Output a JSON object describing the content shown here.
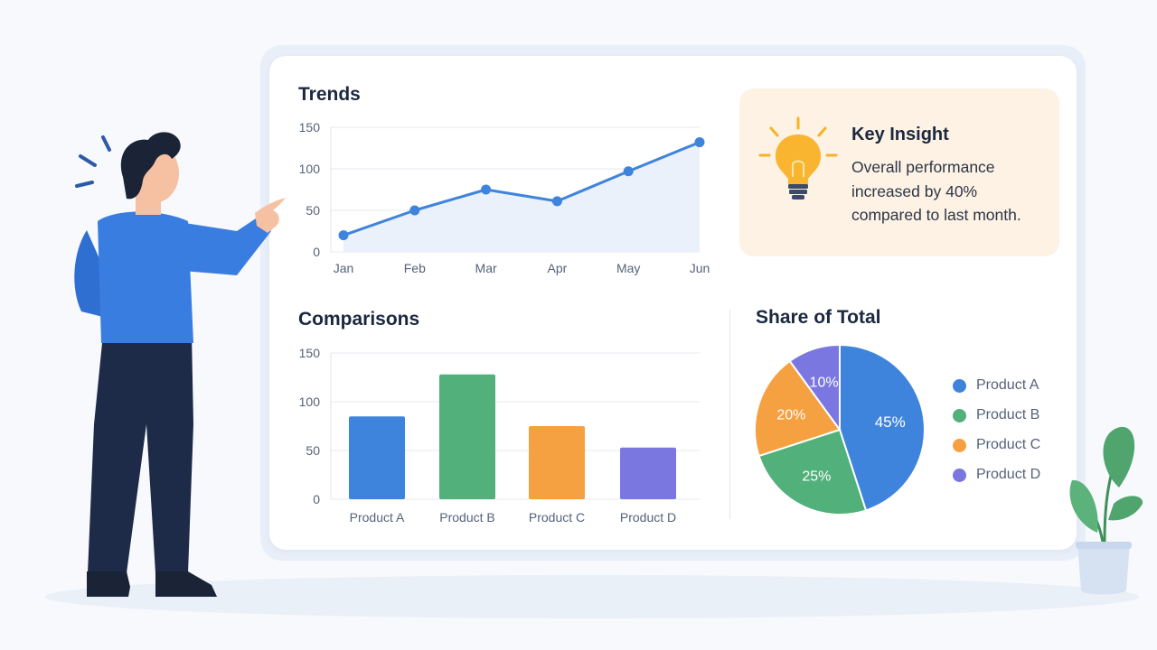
{
  "insight": {
    "title": "Key Insight",
    "text": "Overall performance increased by 40% compared to last month."
  },
  "colors": {
    "line": "#3f84dc",
    "productA": "#3f84dc",
    "productB": "#52b07a",
    "productC": "#f6a141",
    "productD": "#7a78e0"
  },
  "chart_data": [
    {
      "type": "line",
      "title": "Trends",
      "categories": [
        "Jan",
        "Feb",
        "Mar",
        "Apr",
        "May",
        "Jun"
      ],
      "values": [
        20,
        50,
        75,
        61,
        97,
        132
      ],
      "yticks": [
        0,
        50,
        100,
        150
      ],
      "ylim": [
        0,
        150
      ],
      "grid": true
    },
    {
      "type": "bar",
      "title": "Comparisons",
      "categories": [
        "Product A",
        "Product B",
        "Product C",
        "Product D"
      ],
      "values": [
        85,
        128,
        75,
        53
      ],
      "yticks": [
        0,
        50,
        100,
        150
      ],
      "ylim": [
        0,
        150
      ],
      "grid": true
    },
    {
      "type": "pie",
      "title": "Share of Total",
      "labels": [
        "Product A",
        "Product B",
        "Product C",
        "Product D"
      ],
      "values": [
        45,
        25,
        20,
        10
      ],
      "value_labels": [
        "45%",
        "25%",
        "20%",
        "10%"
      ],
      "legend": "right"
    }
  ]
}
